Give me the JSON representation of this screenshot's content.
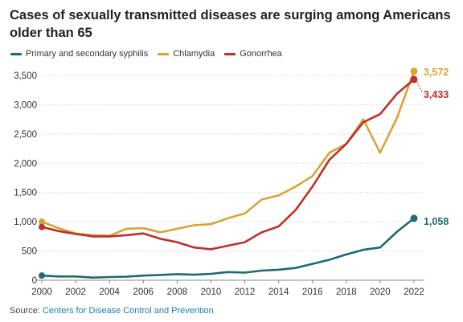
{
  "title": "Cases of sexually transmitted diseases are surging among Americans older than 65",
  "source": {
    "prefix": "Source: ",
    "link": "Centers for Disease Control and Prevention"
  },
  "colors": {
    "syphilis": "#1d6b74",
    "chlamydia": "#d8a434",
    "gonorrhea": "#bf2f2b",
    "grid": "#d9d9d9",
    "axis": "#888888"
  },
  "chart_data": {
    "type": "line",
    "title": "Cases of sexually transmitted diseases are surging among Americans older than 65",
    "xlabel": "",
    "ylabel": "",
    "xlim": [
      2000,
      2022
    ],
    "ylim": [
      0,
      3500
    ],
    "x_ticks": [
      2000,
      2002,
      2004,
      2006,
      2008,
      2010,
      2012,
      2014,
      2016,
      2018,
      2020,
      2022
    ],
    "x_tick_labels": [
      "2000",
      "2002",
      "2004",
      "2006",
      "2008",
      "2010",
      "2012",
      "2014",
      "2016",
      "2018",
      "2020",
      "2022"
    ],
    "y_ticks": [
      0,
      500,
      1000,
      1500,
      2000,
      2500,
      3000,
      3500
    ],
    "y_tick_labels": [
      "0",
      "500",
      "1,000",
      "1,500",
      "2,000",
      "2,500",
      "3,000",
      "3,500"
    ],
    "grid": true,
    "legend_position": "top-left",
    "x": [
      2000,
      2001,
      2002,
      2003,
      2004,
      2005,
      2006,
      2007,
      2008,
      2009,
      2010,
      2011,
      2012,
      2013,
      2014,
      2015,
      2016,
      2017,
      2018,
      2019,
      2020,
      2021,
      2022
    ],
    "series": [
      {
        "name": "Primary and secondary syphilis",
        "color_key": "syphilis",
        "values": [
          80,
          65,
          65,
          45,
          55,
          60,
          80,
          90,
          105,
          95,
          110,
          140,
          130,
          165,
          180,
          210,
          280,
          350,
          440,
          520,
          560,
          830,
          1058
        ],
        "end_label": "1,058"
      },
      {
        "name": "Chlamydia",
        "color_key": "chlamydia",
        "values": [
          1000,
          890,
          800,
          770,
          760,
          880,
          890,
          820,
          880,
          940,
          960,
          1060,
          1140,
          1380,
          1450,
          1600,
          1780,
          2180,
          2330,
          2750,
          2180,
          2780,
          3572
        ],
        "end_label": "3,572"
      },
      {
        "name": "Gonorrhea",
        "color_key": "gonorrhea",
        "values": [
          910,
          840,
          790,
          750,
          750,
          770,
          800,
          710,
          650,
          560,
          530,
          590,
          650,
          820,
          920,
          1200,
          1600,
          2060,
          2330,
          2700,
          2840,
          3190,
          3433
        ],
        "end_label": "3,433"
      }
    ]
  }
}
